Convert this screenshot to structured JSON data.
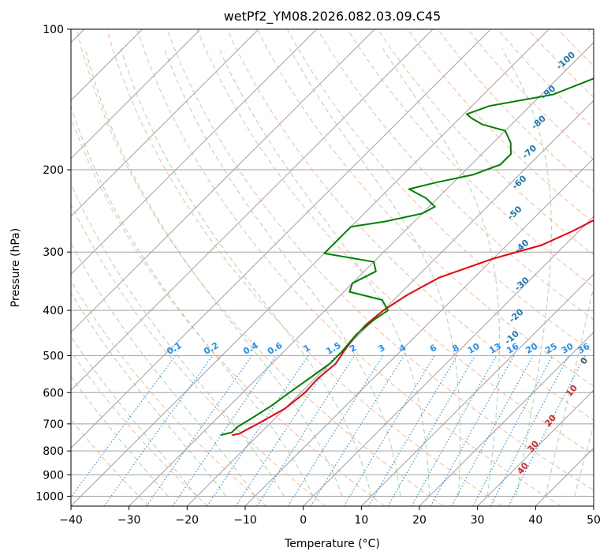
{
  "chart_data": {
    "type": "line",
    "title": "wetPf2_YM08.2026.082.03.09.C45",
    "xlabel": "Temperature (°C)",
    "ylabel": "Pressure (hPa)",
    "xlim": [
      -40,
      50
    ],
    "ylim": [
      1050,
      100
    ],
    "y_scale": "log",
    "grid": true,
    "x_ticks": [
      -40,
      -30,
      -20,
      -10,
      0,
      10,
      20,
      30,
      40,
      50
    ],
    "y_ticks": [
      100,
      200,
      300,
      400,
      500,
      600,
      700,
      800,
      900,
      1000
    ],
    "series": [
      {
        "color": "#e8000b",
        "points": [
          {
            "p": 740,
            "t": -24.5
          },
          {
            "p": 735,
            "t": -23.5
          },
          {
            "p": 722,
            "t": -23.0
          },
          {
            "p": 700,
            "t": -22.0
          },
          {
            "p": 650,
            "t": -20.0
          },
          {
            "p": 600,
            "t": -19.3
          },
          {
            "p": 560,
            "t": -19.5
          },
          {
            "p": 520,
            "t": -19.0
          },
          {
            "p": 490,
            "t": -19.7
          },
          {
            "p": 460,
            "t": -20.3
          },
          {
            "p": 430,
            "t": -20.5
          },
          {
            "p": 400,
            "t": -20.0
          },
          {
            "p": 370,
            "t": -18.5
          },
          {
            "p": 340,
            "t": -16.0
          },
          {
            "p": 310,
            "t": -10.0
          },
          {
            "p": 290,
            "t": -4.0
          },
          {
            "p": 270,
            "t": -1.0
          },
          {
            "p": 250,
            "t": 1.5
          },
          {
            "p": 225,
            "t": 5.0
          },
          {
            "p": 200,
            "t": 8.5
          },
          {
            "p": 175,
            "t": 11.0
          },
          {
            "p": 150,
            "t": 13.0
          },
          {
            "p": 130,
            "t": 13.5
          },
          {
            "p": 115,
            "t": 15.0
          },
          {
            "p": 100,
            "t": 17.0
          }
        ]
      },
      {
        "color": "#008000",
        "points": [
          {
            "p": 740,
            "t": -26.5
          },
          {
            "p": 730,
            "t": -25.0
          },
          {
            "p": 710,
            "t": -25.0
          },
          {
            "p": 680,
            "t": -24.0
          },
          {
            "p": 640,
            "t": -22.8
          },
          {
            "p": 600,
            "t": -22.0
          },
          {
            "p": 560,
            "t": -21.0
          },
          {
            "p": 520,
            "t": -20.0
          },
          {
            "p": 490,
            "t": -20.0
          },
          {
            "p": 450,
            "t": -20.5
          },
          {
            "p": 420,
            "t": -20.0
          },
          {
            "p": 400,
            "t": -19.2
          },
          {
            "p": 380,
            "t": -22.0
          },
          {
            "p": 365,
            "t": -29.0
          },
          {
            "p": 350,
            "t": -30.0
          },
          {
            "p": 330,
            "t": -28.0
          },
          {
            "p": 315,
            "t": -30.0
          },
          {
            "p": 302,
            "t": -40.0
          },
          {
            "p": 265,
            "t": -40.0
          },
          {
            "p": 258,
            "t": -35.0
          },
          {
            "p": 248,
            "t": -30.0
          },
          {
            "p": 240,
            "t": -29.0
          },
          {
            "p": 230,
            "t": -32.0
          },
          {
            "p": 220,
            "t": -36.5
          },
          {
            "p": 213,
            "t": -33.0
          },
          {
            "p": 205,
            "t": -28.0
          },
          {
            "p": 195,
            "t": -25.0
          },
          {
            "p": 185,
            "t": -25.0
          },
          {
            "p": 175,
            "t": -27.0
          },
          {
            "p": 165,
            "t": -30.0
          },
          {
            "p": 160,
            "t": -35.0
          },
          {
            "p": 155,
            "t": -38.0
          },
          {
            "p": 152,
            "t": -39.5
          },
          {
            "p": 146,
            "t": -37.0
          },
          {
            "p": 138,
            "t": -28.0
          },
          {
            "p": 128,
            "t": -24.0
          },
          {
            "p": 120,
            "t": -21.0
          },
          {
            "p": 112,
            "t": -19.0
          },
          {
            "p": 106,
            "t": -18.5
          },
          {
            "p": 100,
            "t": -17.5
          }
        ]
      }
    ],
    "dry_adiabat_labels": [
      "-100",
      "-90",
      "-80",
      "-70",
      "-60",
      "-50",
      "-40",
      "-30",
      "-20",
      "-10"
    ],
    "mixing_ratio_labels": [
      "0.1",
      "0.2",
      "0.4",
      "0.6",
      "1",
      "1.5",
      "2",
      "3",
      "4",
      "6",
      "8",
      "10",
      "13",
      "16",
      "20",
      "25",
      "30",
      "36"
    ],
    "moist_adiabat_labels": [
      "0",
      "10",
      "20",
      "30",
      "40"
    ],
    "colors": {
      "temperature": "#e8000b",
      "dewpoint": "#008000",
      "dry_adiabat": "#ffa07a",
      "moist_adiabat": "#8fbc8f",
      "mixing_ratio": "#1e90ff",
      "isotherm": "#a0a0a0",
      "dry_label": "#1f77b4",
      "moist_label": "#d62728"
    }
  }
}
